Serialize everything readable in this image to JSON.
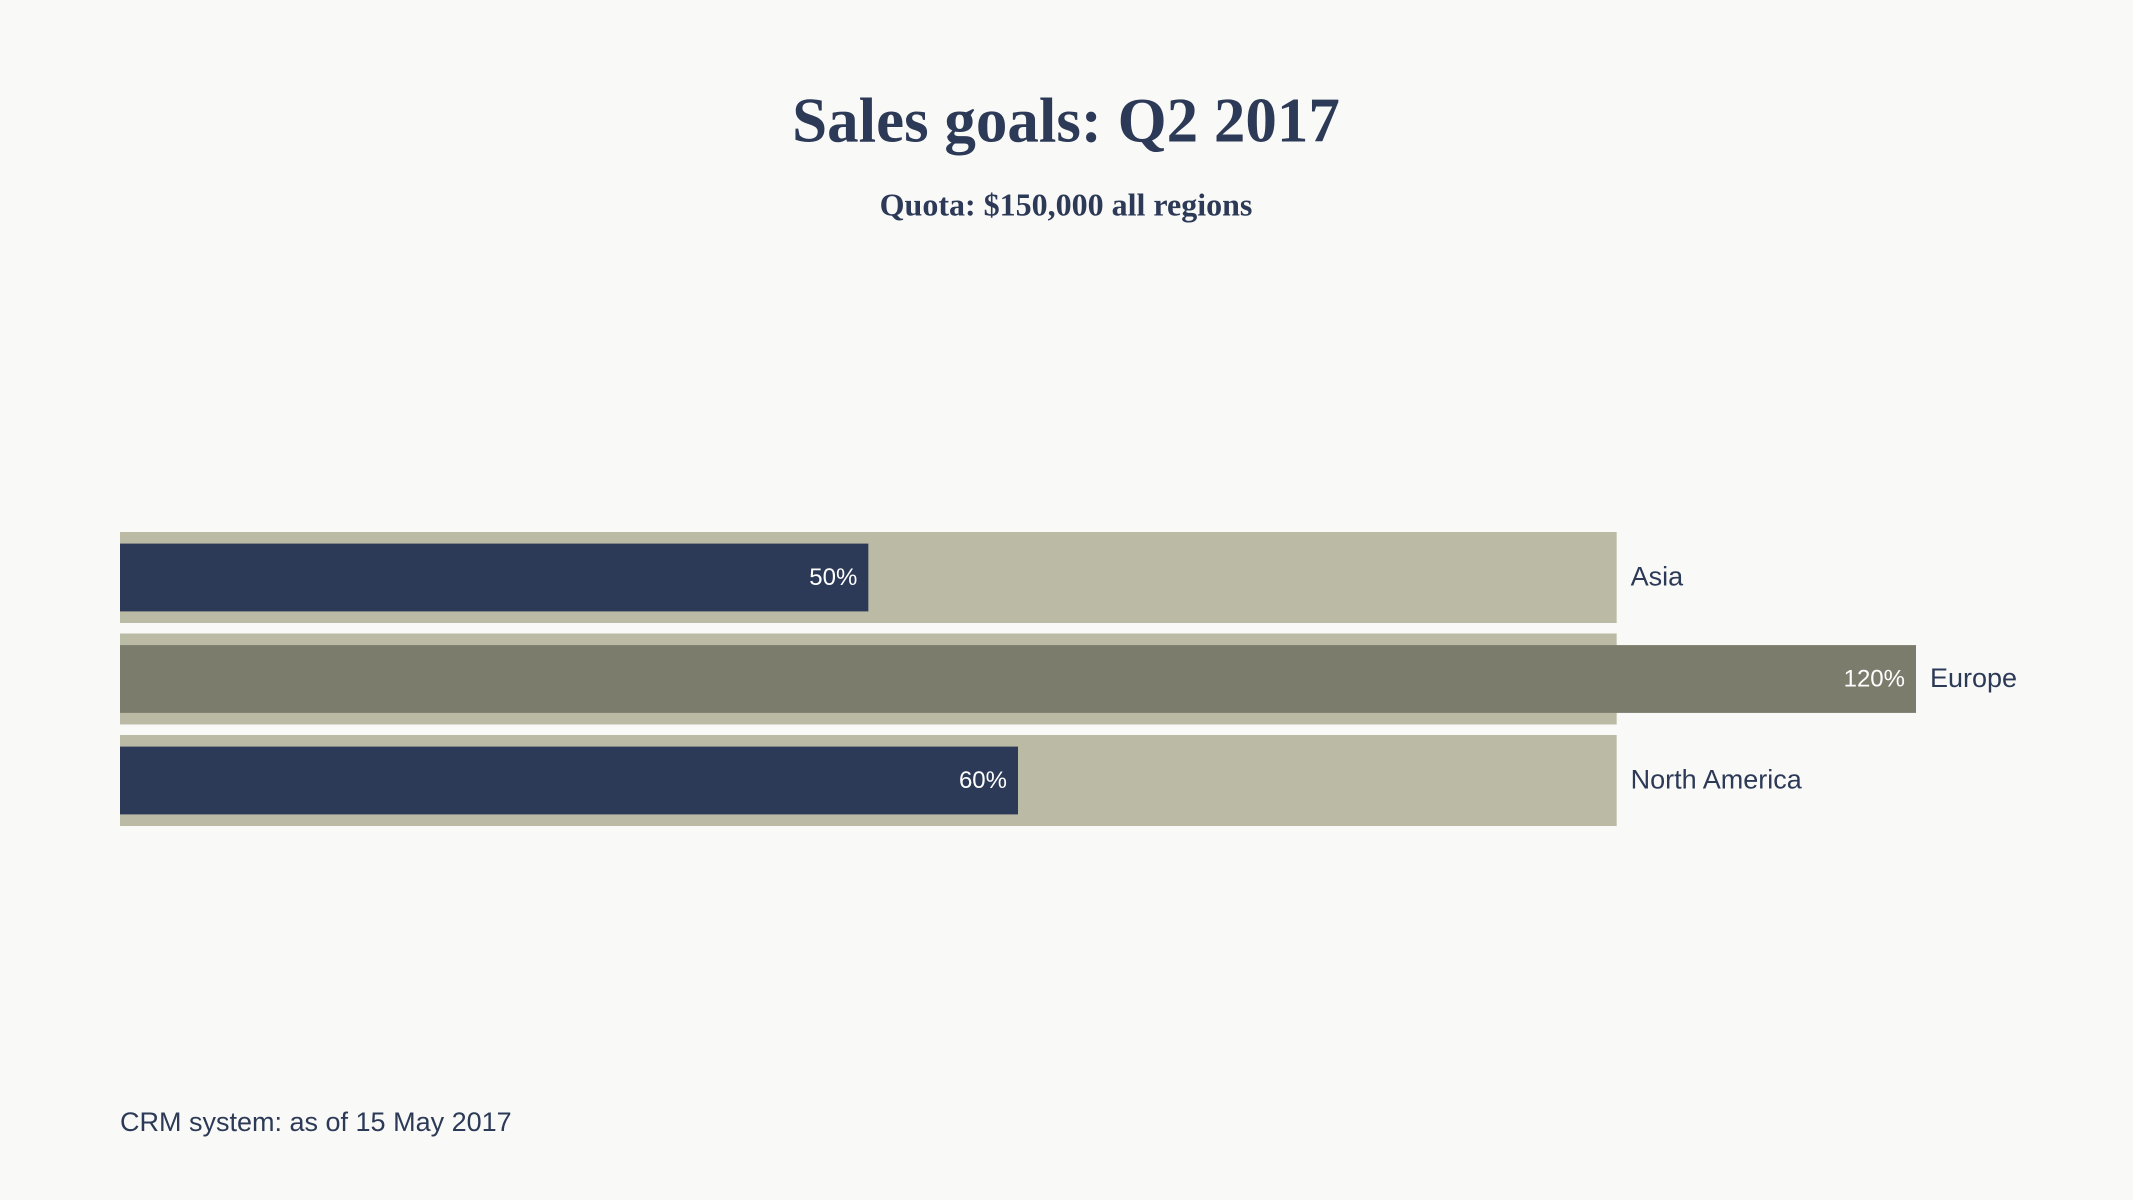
{
  "chart_data": {
    "type": "bullet-bar",
    "title": "Sales goals: Q2 2017",
    "subtitle": "Quota: $150,000 all regions",
    "footnote": "CRM system: as of 15 May 2017",
    "categories": [
      "Asia",
      "Europe",
      "North America"
    ],
    "values": [
      50,
      120,
      60
    ],
    "value_labels": [
      "50%",
      "120%",
      "60%"
    ],
    "target": 100,
    "xlim": [
      0,
      120
    ],
    "color": "#2c3a57",
    "over_target_color": "#7b7c6c",
    "target_color": "#bbbaa5"
  }
}
